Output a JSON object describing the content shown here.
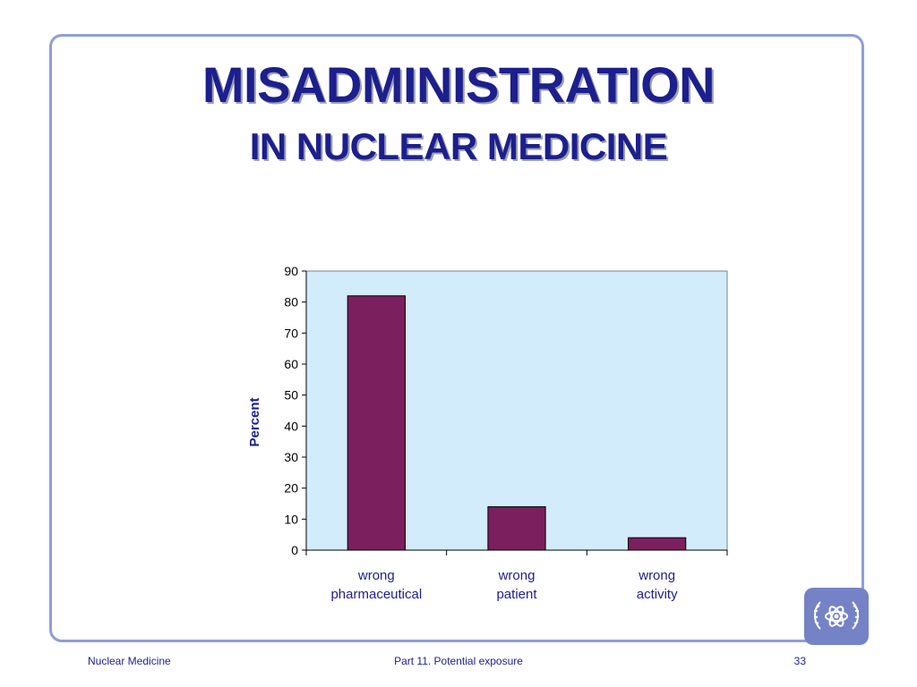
{
  "slide": {
    "title_line1": "MISADMINISTRATION",
    "title_line2": "IN NUCLEAR MEDICINE"
  },
  "footer": {
    "left": "Nuclear Medicine",
    "center": "Part 11. Potential exposure",
    "page_number": "33"
  },
  "colors": {
    "title": "#1c1f8c",
    "frame": "#8e9ed6",
    "plot_background": "#d2ecfc",
    "bar": "#7b1f5e",
    "text": "#1c1f8c"
  },
  "chart_data": {
    "type": "bar",
    "categories": [
      [
        "wrong",
        "pharmaceutical"
      ],
      [
        "wrong",
        "patient"
      ],
      [
        "wrong",
        "activity"
      ]
    ],
    "values": [
      82,
      14,
      4
    ],
    "ylabel": "Percent",
    "ylim": [
      0,
      90
    ],
    "yticks": [
      0,
      10,
      20,
      30,
      40,
      50,
      60,
      70,
      80,
      90
    ],
    "grid": false,
    "legend": "none"
  }
}
